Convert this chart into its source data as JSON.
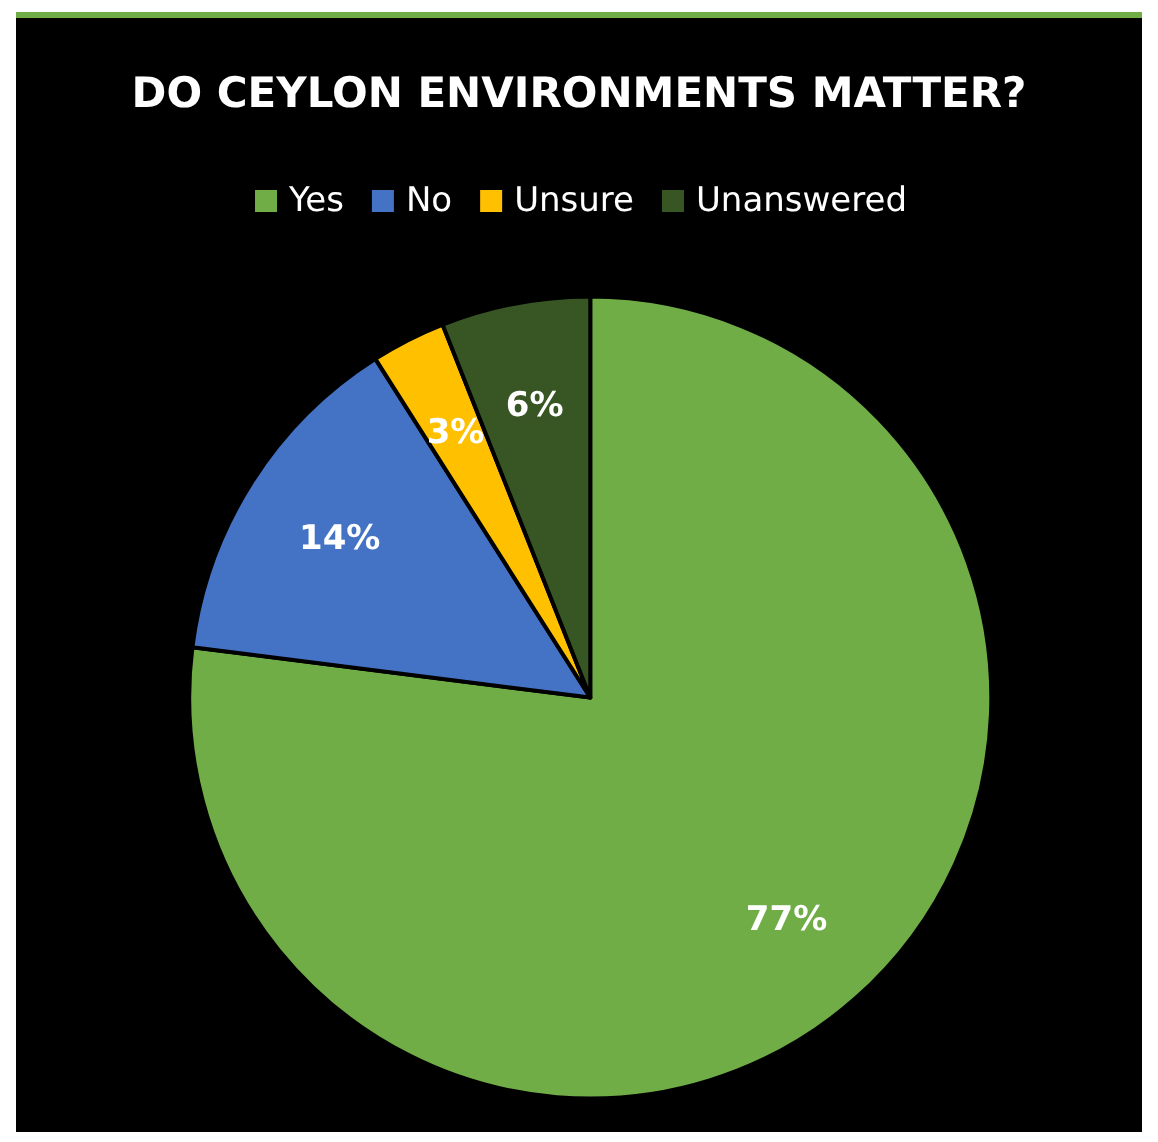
{
  "chart_data": {
    "type": "pie",
    "title": "DO CEYLON ENVIRONMENTS MATTER?",
    "categories": [
      "Yes",
      "No",
      "Unsure",
      "Unanswered"
    ],
    "values": [
      77,
      14,
      3,
      6
    ],
    "colors": [
      "#70ad47",
      "#4472c4",
      "#ffc000",
      "#375623"
    ],
    "value_labels": [
      "77%",
      "14%",
      "3%",
      "6%"
    ],
    "legend": "top"
  }
}
